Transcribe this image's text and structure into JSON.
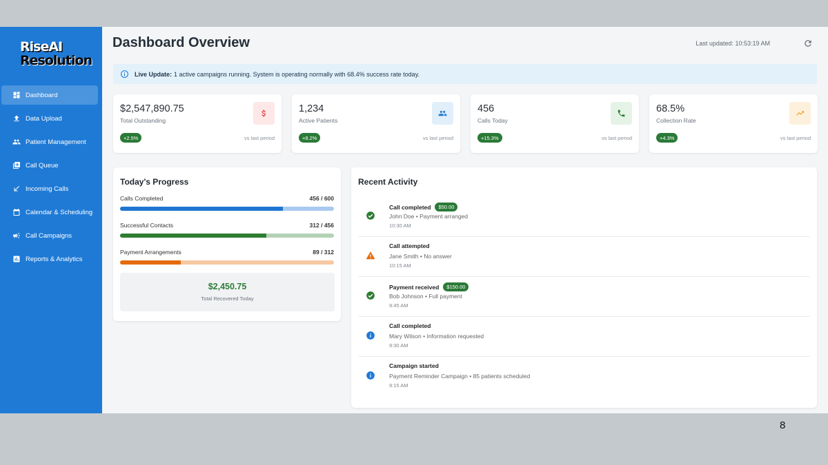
{
  "brand": {
    "line1": "RiseAI",
    "line2": "Resolution"
  },
  "sidebar": {
    "items": [
      {
        "label": "Dashboard",
        "icon": "dashboard-icon",
        "active": true
      },
      {
        "label": "Data Upload",
        "icon": "upload-icon"
      },
      {
        "label": "Patient Management",
        "icon": "people-icon"
      },
      {
        "label": "Call Queue",
        "icon": "queue-icon"
      },
      {
        "label": "Incoming Calls",
        "icon": "incoming-call-icon"
      },
      {
        "label": "Calendar & Scheduling",
        "icon": "calendar-icon"
      },
      {
        "label": "Call Campaigns",
        "icon": "megaphone-icon"
      },
      {
        "label": "Reports & Analytics",
        "icon": "bar-chart-icon"
      }
    ]
  },
  "header": {
    "title": "Dashboard Overview",
    "last_updated": "Last updated: 10:53:19 AM"
  },
  "alert": {
    "strong": "Live Update:",
    "text": "1 active campaigns running. System is operating normally with 68.4% success rate today."
  },
  "stats": [
    {
      "value": "$2,547,890.75",
      "label": "Total Outstanding",
      "change": "+2.5%",
      "vs": "vs last period",
      "icon": "dollar-icon",
      "icon_color": "#e53935",
      "icon_bg": "#fde7e7"
    },
    {
      "value": "1,234",
      "label": "Active Patients",
      "change": "+8.2%",
      "vs": "vs last period",
      "icon": "people-icon",
      "icon_color": "#1e7bd0",
      "icon_bg": "#e1effb"
    },
    {
      "value": "456",
      "label": "Calls Today",
      "change": "+15.3%",
      "vs": "vs last period",
      "icon": "phone-icon",
      "icon_color": "#2e7d32",
      "icon_bg": "#e5f3e6"
    },
    {
      "value": "68.5%",
      "label": "Collection Rate",
      "change": "+4.3%",
      "vs": "vs last period",
      "icon": "trending-up-icon",
      "icon_color": "#f59e0b",
      "icon_bg": "#fdf0dd"
    }
  ],
  "progress": {
    "title": "Today's Progress",
    "rows": [
      {
        "label": "Calls Completed",
        "value": "456 / 600",
        "fraction": 0.76,
        "fill": "#1f76d0",
        "track": "#a9c9f0"
      },
      {
        "label": "Successful Contacts",
        "value": "312 / 456",
        "fraction": 0.684,
        "fill": "#2e7d32",
        "track": "#b4d2b6"
      },
      {
        "label": "Payment Arrangements",
        "value": "89 / 312",
        "fraction": 0.285,
        "fill": "#e36b0c",
        "track": "#f6c9a4"
      }
    ],
    "recovered_amount": "$2,450.75",
    "recovered_label": "Total Recovered Today"
  },
  "activity": {
    "title": "Recent Activity",
    "items": [
      {
        "title": "Call completed",
        "badge": "$50.00",
        "desc": "John Doe • Payment arranged",
        "time": "10:30 AM",
        "icon": "check-circle-icon",
        "color": "#2e7d32"
      },
      {
        "title": "Call attempted",
        "badge": "",
        "desc": "Jane Smith • No answer",
        "time": "10:15 AM",
        "icon": "warning-icon",
        "color": "#e36b0c"
      },
      {
        "title": "Payment received",
        "badge": "$150.00",
        "desc": "Bob Johnson • Full payment",
        "time": "9:45 AM",
        "icon": "check-circle-icon",
        "color": "#2e7d32"
      },
      {
        "title": "Call completed",
        "badge": "",
        "desc": "Mary Wilson • Information requested",
        "time": "9:30 AM",
        "icon": "info-icon",
        "color": "#1f7ad6"
      },
      {
        "title": "Campaign started",
        "badge": "",
        "desc": "Payment Reminder Campaign • 85 patients scheduled",
        "time": "9:15 AM",
        "icon": "info-icon",
        "color": "#1f7ad6"
      }
    ]
  },
  "slide_number": "8"
}
